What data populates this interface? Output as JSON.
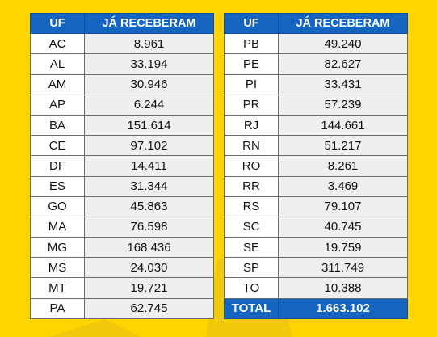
{
  "left_table": {
    "headers": {
      "uf": "UF",
      "value": "JÁ RECEBERAM"
    },
    "rows": [
      {
        "uf": "AC",
        "value": "8.961"
      },
      {
        "uf": "AL",
        "value": "33.194"
      },
      {
        "uf": "AM",
        "value": "30.946"
      },
      {
        "uf": "AP",
        "value": "6.244"
      },
      {
        "uf": "BA",
        "value": "151.614"
      },
      {
        "uf": "CE",
        "value": "97.102"
      },
      {
        "uf": "DF",
        "value": "14.411"
      },
      {
        "uf": "ES",
        "value": "31.344"
      },
      {
        "uf": "GO",
        "value": "45.863"
      },
      {
        "uf": "MA",
        "value": "76.598"
      },
      {
        "uf": "MG",
        "value": "168.436"
      },
      {
        "uf": "MS",
        "value": "24.030"
      },
      {
        "uf": "MT",
        "value": "19.721"
      },
      {
        "uf": "PA",
        "value": "62.745"
      }
    ]
  },
  "right_table": {
    "headers": {
      "uf": "UF",
      "value": "JÁ RECEBERAM"
    },
    "rows": [
      {
        "uf": "PB",
        "value": "49.240"
      },
      {
        "uf": "PE",
        "value": "82.627"
      },
      {
        "uf": "PI",
        "value": "33.431"
      },
      {
        "uf": "PR",
        "value": "57.239"
      },
      {
        "uf": "RJ",
        "value": "144.661"
      },
      {
        "uf": "RN",
        "value": "51.217"
      },
      {
        "uf": "RO",
        "value": "8.261"
      },
      {
        "uf": "RR",
        "value": "3.469"
      },
      {
        "uf": "RS",
        "value": "79.107"
      },
      {
        "uf": "SC",
        "value": "40.745"
      },
      {
        "uf": "SE",
        "value": "19.759"
      },
      {
        "uf": "SP",
        "value": "311.749"
      },
      {
        "uf": "TO",
        "value": "10.388"
      }
    ],
    "total": {
      "label": "TOTAL",
      "value": "1.663.102"
    }
  },
  "colors": {
    "background": "#FFD400",
    "header": "#1565C0",
    "header_text": "#FFFFFF",
    "value_cell": "#EFEFEF",
    "decoration": "#E0B900"
  }
}
